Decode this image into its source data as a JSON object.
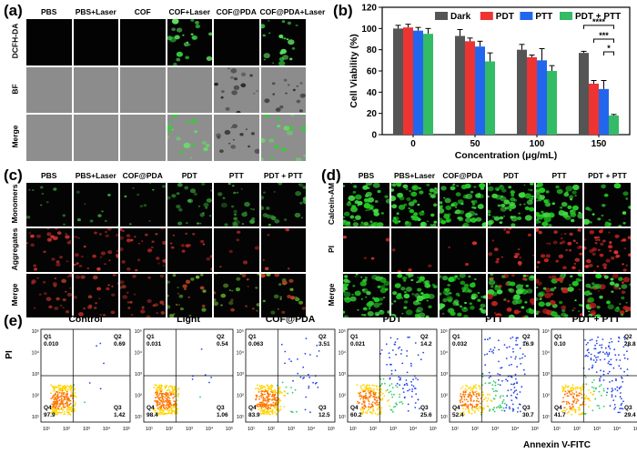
{
  "panel_labels": {
    "a": "(a)",
    "b": "(b)",
    "c": "(c)",
    "d": "(d)",
    "e": "(e)"
  },
  "panel_a": {
    "columns": [
      "PBS",
      "PBS+Laser",
      "COF",
      "COF+Laser",
      "COF@PDA",
      "COF@PDA+Laser"
    ],
    "rows": [
      "DCFH-DA",
      "BF",
      "Merge"
    ]
  },
  "panel_c": {
    "columns": [
      "PBS",
      "PBS+Laser",
      "COF@PDA",
      "PDT",
      "PTT",
      "PDT + PTT"
    ],
    "rows": [
      "Monomers",
      "Aggregates",
      "Merge"
    ]
  },
  "panel_d": {
    "columns": [
      "PBS",
      "PBS+Laser",
      "COF@PDA",
      "PDT",
      "PTT",
      "PDT + PTT"
    ],
    "rows": [
      "Calcein-AM",
      "PI",
      "Merge"
    ]
  },
  "chart_data": [
    {
      "type": "bar",
      "panel": "b",
      "categories": [
        "0",
        "50",
        "100",
        "150"
      ],
      "series": [
        {
          "name": "Dark",
          "color": "#555555",
          "values": [
            100,
            93,
            80,
            77
          ],
          "errors": [
            3,
            6,
            5,
            1.5
          ]
        },
        {
          "name": "PDT",
          "color": "#ee3333",
          "values": [
            101,
            88,
            73,
            48
          ],
          "errors": [
            3,
            3,
            2,
            3
          ]
        },
        {
          "name": "PTT",
          "color": "#2266ee",
          "values": [
            98,
            83,
            70,
            43
          ],
          "errors": [
            3,
            5,
            11,
            8
          ]
        },
        {
          "name": "PDT + PTT",
          "color": "#33bb66",
          "values": [
            95,
            69,
            60,
            18
          ],
          "errors": [
            5,
            8,
            5,
            1
          ]
        }
      ],
      "xlabel": "Concentration (μg/mL)",
      "ylabel": "Cell Viability (%)",
      "ylim": [
        0,
        120
      ],
      "yticks": [
        "0",
        "20",
        "40",
        "60",
        "80",
        "100",
        "120"
      ],
      "significance": [
        "****",
        "***",
        "*"
      ],
      "legend_position": "top-right"
    },
    {
      "type": "scatter",
      "panel": "e",
      "xlabel": "Annexin V-FITC",
      "ylabel": "PI",
      "axis_ticks": [
        "10¹",
        "10²",
        "10³",
        "10⁴",
        "10⁵"
      ],
      "plots": [
        {
          "title": "Control",
          "Q1": "0.010",
          "Q2": "0.69",
          "Q3": "1.42",
          "Q4": "97.9"
        },
        {
          "title": "Light",
          "Q1": "0.031",
          "Q2": "0.54",
          "Q3": "1.06",
          "Q4": "98.4"
        },
        {
          "title": "COF@PDA",
          "Q1": "0.063",
          "Q2": "3.51",
          "Q3": "12.5",
          "Q4": "83.9"
        },
        {
          "title": "PDT",
          "Q1": "0.021",
          "Q2": "14.2",
          "Q3": "25.6",
          "Q4": "60.2"
        },
        {
          "title": "PTT",
          "Q1": "0.032",
          "Q2": "16.9",
          "Q3": "30.7",
          "Q4": "52.4"
        },
        {
          "title": "PDT + PTT",
          "Q1": "0.10",
          "Q2": "28.8",
          "Q3": "29.4",
          "Q4": "41.7"
        }
      ],
      "quadrant_labels": [
        "Q1",
        "Q2",
        "Q3",
        "Q4"
      ]
    }
  ]
}
